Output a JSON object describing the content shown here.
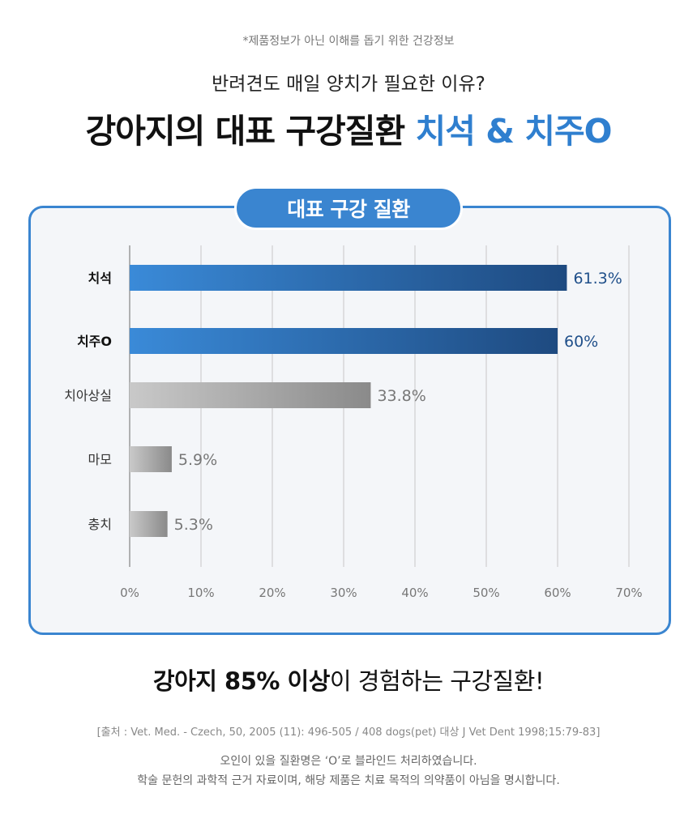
{
  "header": {
    "disclaimer": "*제품정보가 아닌 이해를 돕기 위한 건강정보",
    "subtitle": "반려견도 매일 양치가 필요한 이유?",
    "title_main": "강아지의 대표 구강질환 ",
    "title_accent": "치석 & 치주O"
  },
  "panel": {
    "label": "대표 구강 질환"
  },
  "chart_data": {
    "type": "bar",
    "orientation": "horizontal",
    "categories": [
      "치석",
      "치주O",
      "치아상실",
      "마모",
      "충치"
    ],
    "values": [
      61.3,
      60,
      33.8,
      5.9,
      5.3
    ],
    "value_labels": [
      "61.3%",
      "60%",
      "33.8%",
      "5.9%",
      "5.3%"
    ],
    "highlighted": [
      true,
      true,
      false,
      false,
      false
    ],
    "xlim": [
      0,
      70
    ],
    "x_ticks": [
      "0%",
      "10%",
      "20%",
      "30%",
      "40%",
      "50%",
      "60%",
      "70%"
    ],
    "grid": true,
    "colors": {
      "highlight_start": "#3a8ad8",
      "highlight_end": "#1e4a80",
      "normal_start": "#c9c9c9",
      "normal_end": "#8a8a8a",
      "highlight_label": "#1f4f8a",
      "normal_label": "#777777"
    }
  },
  "footer": {
    "claim_bold": "강아지 85% 이상",
    "claim_rest": "이 경험하는 구강질환!",
    "source": "[출처 : Vet. Med. - Czech, 50, 2005 (11): 496-505 / 408 dogs(pet) 대상 J Vet Dent 1998;15:79-83]",
    "note_line1": "오인이 있을 질환명은 ‘O’로 블라인드 처리하였습니다.",
    "note_line2": "학술 문헌의 과학적 근거 자료이며, 해당 제품은 치료 목적의 의약품이 아님을 명시합니다."
  }
}
